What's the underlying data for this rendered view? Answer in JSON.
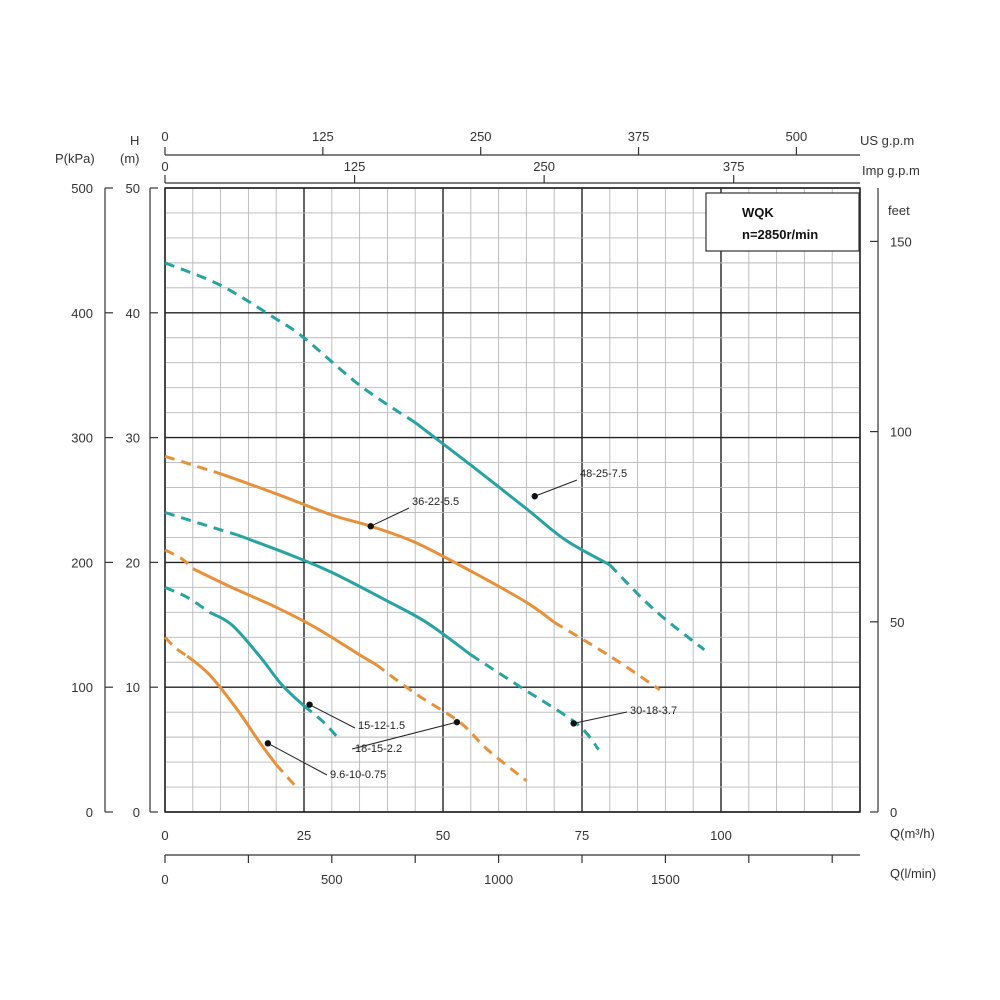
{
  "chart_data": {
    "type": "line",
    "title": "WQK",
    "subtitle": "n=2850r/min",
    "axes": {
      "left_pressure": {
        "label": "P(kPa)",
        "range": [
          0,
          500
        ],
        "ticks": [
          "0",
          "100",
          "200",
          "300",
          "400",
          "500"
        ]
      },
      "left_head": {
        "label_line1": "H",
        "label_line2": "(m)",
        "range": [
          0,
          50
        ],
        "ticks": [
          "0",
          "10",
          "20",
          "30",
          "40",
          "50"
        ]
      },
      "right_feet": {
        "label": "feet",
        "ticks": [
          "0",
          "50",
          "100",
          "150"
        ]
      },
      "top_us": {
        "label": "US g.p.m",
        "ticks": [
          "0",
          "125",
          "250",
          "375",
          "500"
        ]
      },
      "top_imp": {
        "label": "Imp g.p.m",
        "ticks": [
          "0",
          "125",
          "250",
          "375"
        ]
      },
      "bottom_m3h": {
        "label": "Q(m³/h)",
        "range": [
          0,
          125
        ],
        "ticks": [
          "0",
          "25",
          "50",
          "75",
          "100"
        ]
      },
      "bottom_lmin": {
        "label": "Q(l/min)",
        "ticks": [
          "0",
          "500",
          "1000",
          "1500"
        ]
      }
    },
    "grid": true,
    "units": {
      "x": "m³/h",
      "y": "m"
    },
    "series": [
      {
        "name": "48-25-7.5",
        "color": "#27a3a3",
        "dashed": [
          [
            0,
            44
          ],
          [
            10,
            42.2
          ],
          [
            20,
            39.5
          ],
          [
            25,
            38
          ],
          [
            35,
            34.2
          ],
          [
            45,
            31.2
          ]
        ],
        "solid": [
          [
            45,
            31.2
          ],
          [
            55,
            27.8
          ],
          [
            65,
            24.3
          ],
          [
            72,
            21.8
          ],
          [
            80,
            19.8
          ]
        ],
        "dashed_end": [
          [
            80,
            19.8
          ],
          [
            88,
            16.2
          ],
          [
            97,
            13
          ]
        ],
        "marker": [
          66.5,
          25.3
        ]
      },
      {
        "name": "36-22-5.5",
        "color": "#e8913a",
        "dashed": [
          [
            0,
            28.5
          ],
          [
            5,
            27.8
          ],
          [
            10,
            27.1
          ]
        ],
        "solid": [
          [
            10,
            27.1
          ],
          [
            20,
            25.5
          ],
          [
            30,
            23.8
          ],
          [
            37,
            22.9
          ],
          [
            45,
            21.6
          ],
          [
            55,
            19.3
          ],
          [
            65,
            16.8
          ],
          [
            70,
            15.2
          ]
        ],
        "dashed_end": [
          [
            70,
            15.2
          ],
          [
            80,
            12.5
          ],
          [
            89,
            9.8
          ]
        ],
        "marker": [
          37,
          22.9
        ]
      },
      {
        "name": "30-18-3.7",
        "color": "#27a3a3",
        "dashed": [
          [
            0,
            24
          ],
          [
            5,
            23.3
          ],
          [
            13,
            22.2
          ]
        ],
        "solid": [
          [
            13,
            22.2
          ],
          [
            22,
            20.7
          ],
          [
            30,
            19.2
          ],
          [
            40,
            16.9
          ],
          [
            47,
            15.2
          ],
          [
            55,
            12.6
          ]
        ],
        "dashed_end": [
          [
            55,
            12.6
          ],
          [
            64,
            10
          ],
          [
            74,
            7.1
          ],
          [
            78,
            5
          ]
        ],
        "marker": [
          73.5,
          7.1
        ]
      },
      {
        "name": "18-15-2.2",
        "color": "#e8913a",
        "dashed": [
          [
            0,
            21
          ],
          [
            3,
            20.3
          ],
          [
            5,
            19.5
          ]
        ],
        "solid": [
          [
            5,
            19.5
          ],
          [
            12,
            18
          ],
          [
            20,
            16.4
          ],
          [
            27,
            14.8
          ],
          [
            35,
            12.6
          ],
          [
            38,
            11.8
          ]
        ],
        "dashed_end": [
          [
            38,
            11.8
          ],
          [
            45,
            9.5
          ],
          [
            53,
            7.2
          ],
          [
            58,
            5
          ],
          [
            65,
            2.5
          ]
        ],
        "marker": [
          52.5,
          7.2
        ]
      },
      {
        "name": "15-12-1.5",
        "color": "#27a3a3",
        "dashed": [
          [
            0,
            18
          ],
          [
            4,
            17.2
          ],
          [
            8,
            16
          ]
        ],
        "solid": [
          [
            8,
            16
          ],
          [
            12,
            15
          ],
          [
            17,
            12.5
          ],
          [
            21,
            10.2
          ],
          [
            25,
            8.5
          ]
        ],
        "dashed_end": [
          [
            25,
            8.5
          ],
          [
            28.5,
            7.2
          ],
          [
            31,
            6
          ]
        ],
        "marker": [
          26,
          8.6
        ]
      },
      {
        "name": "9.6-10-0.75",
        "color": "#e8913a",
        "dashed": [
          [
            0,
            14
          ],
          [
            2,
            13.1
          ],
          [
            4,
            12.5
          ]
        ],
        "solid": [
          [
            4,
            12.5
          ],
          [
            8,
            11
          ],
          [
            13,
            8.2
          ],
          [
            17,
            5.6
          ],
          [
            20,
            3.8
          ]
        ],
        "dashed_end": [
          [
            20,
            3.8
          ],
          [
            24,
            1.8
          ]
        ],
        "marker": [
          18.5,
          5.5
        ]
      }
    ],
    "labels": [
      {
        "text": "48-25-7.5",
        "series": 0
      },
      {
        "text": "36-22-5.5",
        "series": 1
      },
      {
        "text": "30-18-3.7",
        "series": 2
      },
      {
        "text": "15-12-1.5",
        "series": 4
      },
      {
        "text": "18-15-2.2",
        "series": 3
      },
      {
        "text": "9.6-10-0.75",
        "series": 5
      }
    ]
  }
}
